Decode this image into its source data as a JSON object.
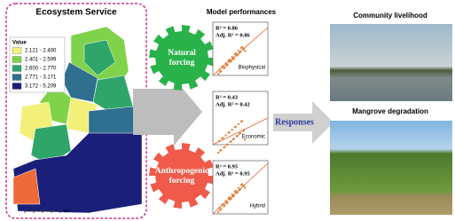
{
  "map": {
    "title": "Ecosystem Service",
    "legend_title": "Value",
    "legend": [
      {
        "label": "2.121 - 2.400",
        "color": "#f3f07a"
      },
      {
        "label": "2.401 - 2.599",
        "color": "#7fd34a"
      },
      {
        "label": "2.600 - 2.770",
        "color": "#2fa56a"
      },
      {
        "label": "2.771 - 3.171",
        "color": "#2f6f8f"
      },
      {
        "label": "3.172 - 5.209",
        "color": "#1a1f7a"
      }
    ],
    "scale_unit": "km"
  },
  "forcings": [
    {
      "lines": [
        "Natural",
        "forcing"
      ],
      "color": "#2ab24a"
    },
    {
      "lines": [
        "Anthropogenic",
        "forcing"
      ],
      "color": "#ef5a4a"
    }
  ],
  "models": {
    "title": "Model performances",
    "plots": [
      {
        "r2": "R² = 0.86",
        "adj_r2": "Adj. R² = 0.86",
        "name": "Biophysical"
      },
      {
        "r2": "R² = 0.43",
        "adj_r2": "Adj. R² = 0.42",
        "name": "Economic"
      },
      {
        "r2": "R² = 0.95",
        "adj_r2": "Adj. R² = 0.95",
        "name": "Hybrid"
      }
    ]
  },
  "responses": "Responses",
  "photos": [
    {
      "title": "Community livelihood"
    },
    {
      "title": "Mangrove degradation"
    }
  ]
}
